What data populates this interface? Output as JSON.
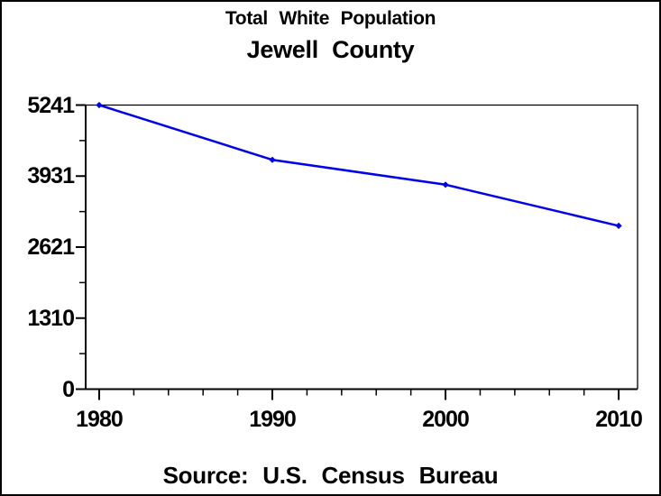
{
  "figure": {
    "title_line1": "Total White Population",
    "title_line2": "Jewell County",
    "source_note": "Source: U.S. Census Bureau",
    "background_color": "#ffffff",
    "border_color": "#000000",
    "axis_color": "#000000",
    "text_color": "#000000"
  },
  "chart_data": {
    "type": "line",
    "title": "Total White Population",
    "subtitle": "Jewell County",
    "footnote": "Source: U.S. Census Bureau",
    "series": [
      {
        "name": "Total White Population",
        "color": "#0000ee",
        "marker": "diamond",
        "points": [
          {
            "year": 1980,
            "value": 5241
          },
          {
            "year": 1990,
            "value": 4231
          },
          {
            "year": 2000,
            "value": 3772
          },
          {
            "year": 2010,
            "value": 3013
          }
        ]
      }
    ],
    "xlabel": "",
    "ylabel": "",
    "xlim": [
      1979.22,
      2011.09
    ],
    "ylim": [
      0,
      5241
    ],
    "grid": false,
    "legend": false,
    "x_major_ticks": [
      {
        "year": 1980,
        "label": "1980"
      },
      {
        "year": 1990,
        "label": "1990"
      },
      {
        "year": 2000,
        "label": "2000"
      },
      {
        "year": 2010,
        "label": "2010"
      }
    ],
    "x_minor_tick_years": [
      1982,
      1984,
      1986,
      1988,
      1992,
      1994,
      1996,
      1998,
      2002,
      2004,
      2006,
      2008
    ],
    "y_major_ticks": [
      {
        "value": 0,
        "label": "0"
      },
      {
        "value": 1310.25,
        "label": "1310"
      },
      {
        "value": 2620.5,
        "label": "2621"
      },
      {
        "value": 3930.75,
        "label": "3931"
      },
      {
        "value": 5241,
        "label": "5241"
      }
    ],
    "y_minor_tick_values": [
      655.125,
      1965.375,
      3275.625,
      4585.875
    ]
  }
}
